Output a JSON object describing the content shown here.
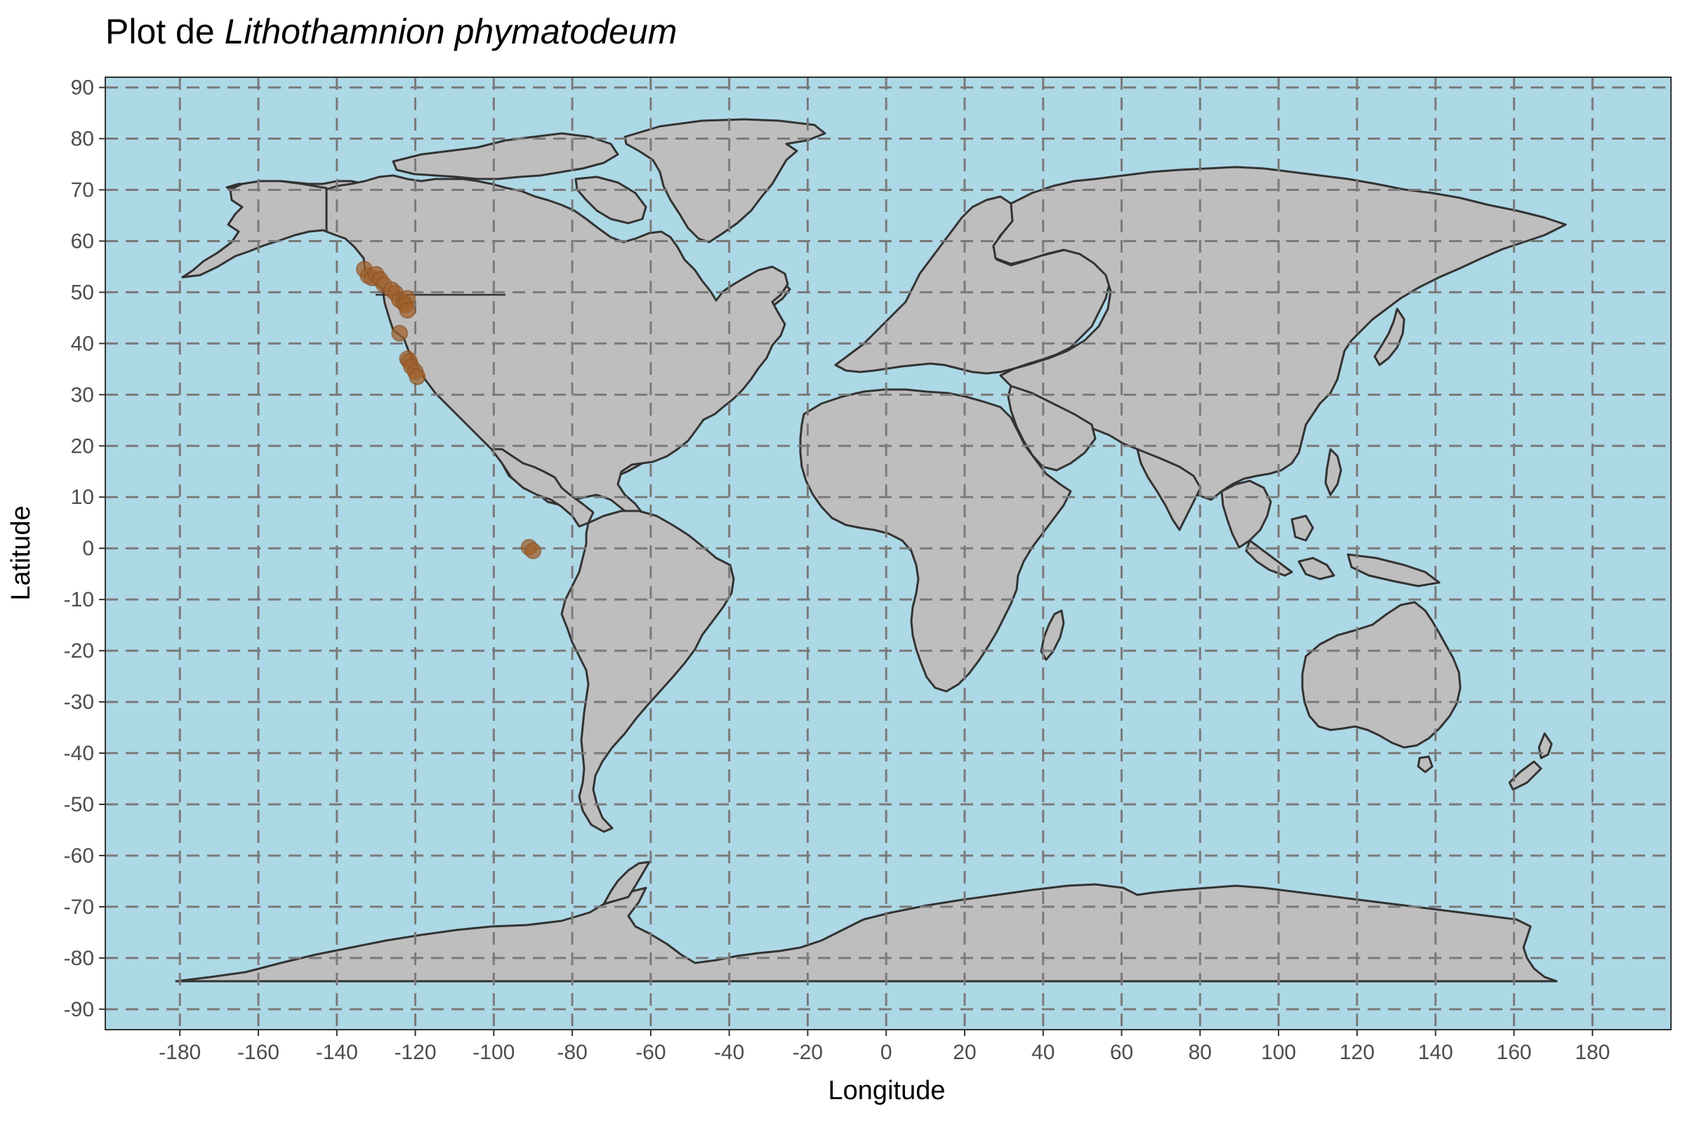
{
  "title": {
    "prefix": "Plot de ",
    "species": "Lithothamnion phymatodeum"
  },
  "chart_data": {
    "type": "scatter",
    "map": "world",
    "xlabel": "Longitude",
    "ylabel": "Latitude",
    "xlim": [
      -199,
      200
    ],
    "ylim": [
      -94,
      92
    ],
    "x_ticks": [
      -180,
      -160,
      -140,
      -120,
      -100,
      -80,
      -60,
      -40,
      -20,
      0,
      20,
      40,
      60,
      80,
      100,
      120,
      140,
      160,
      180
    ],
    "y_ticks": [
      90,
      80,
      70,
      60,
      50,
      40,
      30,
      20,
      10,
      0,
      -10,
      -20,
      -30,
      -40,
      -50,
      -60,
      -70,
      -80,
      -90
    ],
    "grid": true,
    "grid_style": "dashed",
    "colors": {
      "ocean": "#add8e6",
      "land": "#bebebe",
      "outline": "#333333",
      "points": "#a0622d"
    },
    "points": [
      {
        "lon": -133,
        "lat": 54.5
      },
      {
        "lon": -132,
        "lat": 53.2
      },
      {
        "lon": -131,
        "lat": 52.8
      },
      {
        "lon": -130,
        "lat": 53.5
      },
      {
        "lon": -129,
        "lat": 52.5
      },
      {
        "lon": -128,
        "lat": 51.5
      },
      {
        "lon": -126,
        "lat": 50.5
      },
      {
        "lon": -125,
        "lat": 49.8
      },
      {
        "lon": -124,
        "lat": 48.5
      },
      {
        "lon": -123,
        "lat": 48.0
      },
      {
        "lon": -122,
        "lat": 48.8
      },
      {
        "lon": -122.5,
        "lat": 47.5
      },
      {
        "lon": -122,
        "lat": 46.5
      },
      {
        "lon": -124,
        "lat": 42.0
      },
      {
        "lon": -122,
        "lat": 37.0
      },
      {
        "lon": -121.5,
        "lat": 36.5
      },
      {
        "lon": -121,
        "lat": 35.5
      },
      {
        "lon": -120,
        "lat": 34.5
      },
      {
        "lon": -119.5,
        "lat": 33.5
      },
      {
        "lon": -91,
        "lat": 0.2
      },
      {
        "lon": -90,
        "lat": -0.5
      }
    ]
  }
}
